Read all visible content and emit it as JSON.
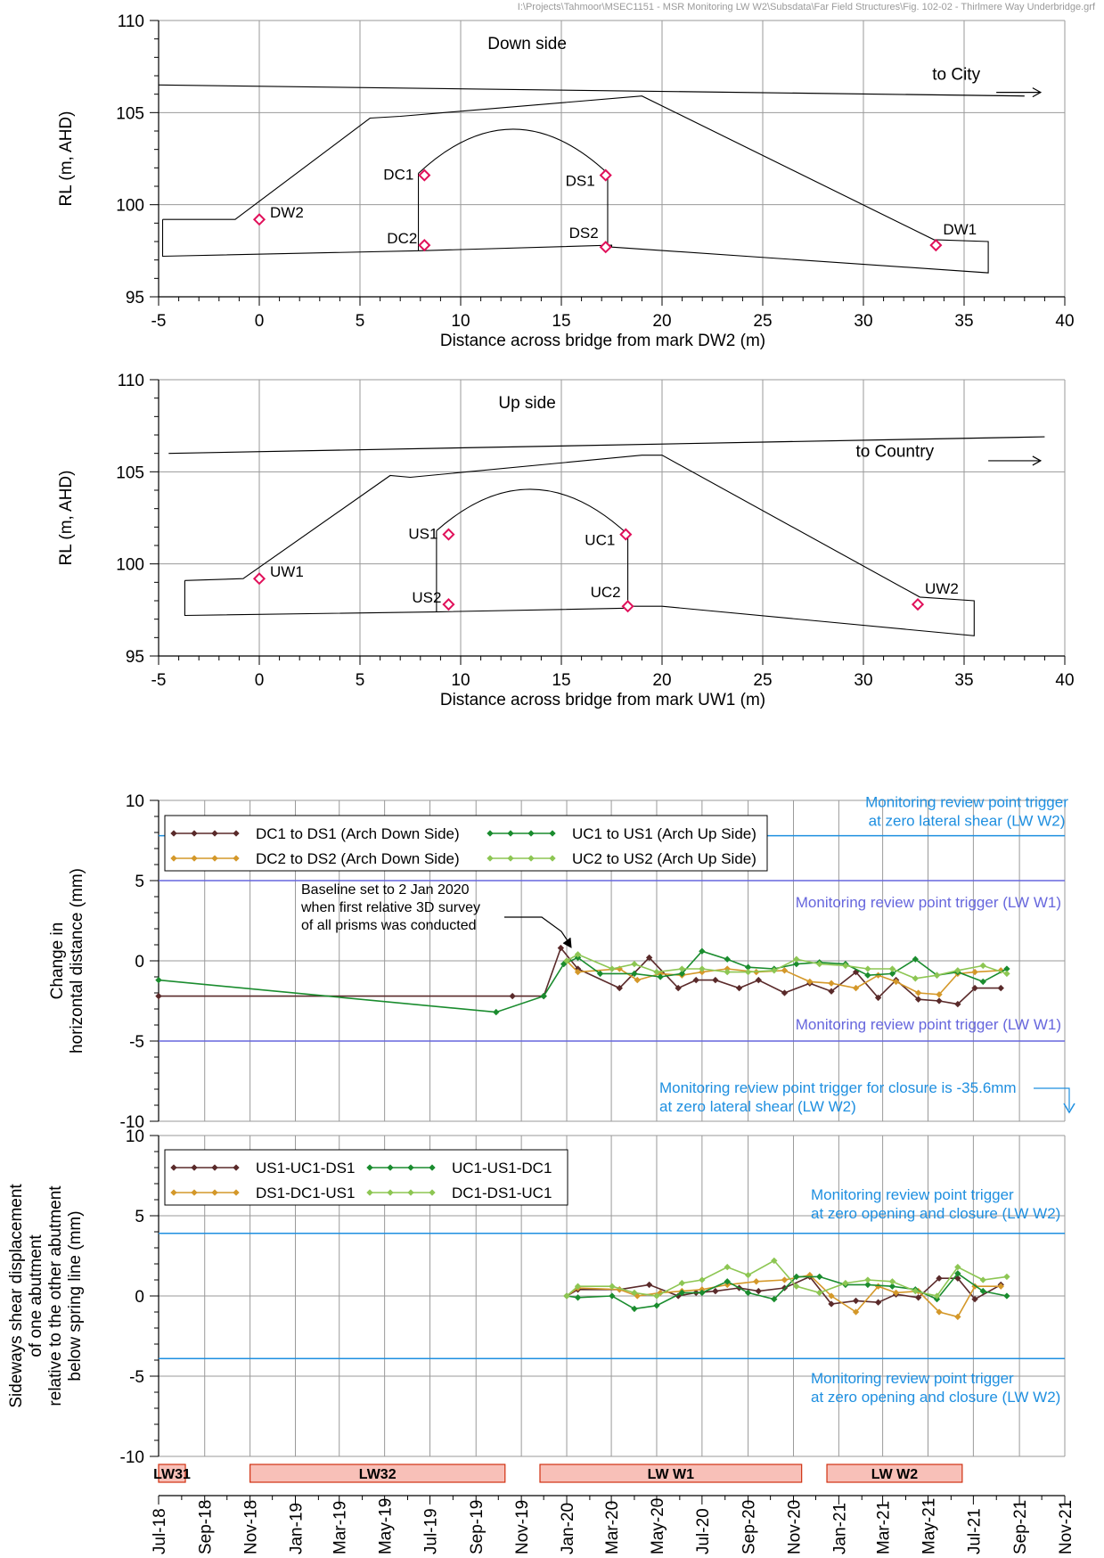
{
  "file_path": "I:\\Projects\\Tahmoor\\MSEC1151 - MSR Monitoring LW W2\\Subsdata\\Far Field Structures\\Fig. 102-02 - Thirlmere Way Underbridge.grf",
  "colors": {
    "ds_pair_1": "#5a2a2a",
    "ds_pair_2": "#d4982a",
    "us_pair_1": "#1a8c2e",
    "us_pair_2": "#8dc653",
    "trigger_blue": "#1e8fe0",
    "trigger_purple": "#6666dd",
    "marker_pink": "#e0105a",
    "longwall_fill": "#f8c0b8",
    "longwall_edge": "#d03010"
  },
  "chart_data": [
    {
      "type": "scatter",
      "title": "Down side",
      "xlabel": "Distance across bridge from mark DW2 (m)",
      "ylabel": "RL (m, AHD)",
      "xlim": [
        -5,
        40
      ],
      "ylim": [
        95,
        110
      ],
      "xticks": [
        "-5",
        "0",
        "5",
        "10",
        "15",
        "20",
        "25",
        "30",
        "35",
        "40"
      ],
      "yticks": [
        "95",
        "100",
        "105",
        "110"
      ],
      "annotation": "to City",
      "road_line": [
        [
          -5,
          106.5
        ],
        [
          38,
          105.9
        ]
      ],
      "embankment_outline": [
        [
          -4.8,
          99.2
        ],
        [
          -1.2,
          99.2
        ],
        [
          5.5,
          104.7
        ],
        [
          7,
          104.8
        ],
        [
          19,
          105.9
        ],
        [
          33.5,
          98.1
        ],
        [
          36.2,
          98.0
        ],
        [
          36.2,
          96.3
        ],
        [
          17.5,
          97.7
        ],
        [
          17.5,
          97.8
        ],
        [
          8,
          97.5
        ],
        [
          -4.8,
          97.2
        ],
        [
          -4.8,
          99.2
        ]
      ],
      "arch": {
        "left": [
          7.9,
          101.7
        ],
        "right": [
          17.3,
          101.7
        ],
        "left_base": [
          7.9,
          97.5
        ],
        "right_base": [
          17.3,
          97.7
        ],
        "crown": 104.1
      },
      "prisms": [
        {
          "label": "DW2",
          "x": 0,
          "y": 99.2
        },
        {
          "label": "DC1",
          "x": 8.2,
          "y": 101.6
        },
        {
          "label": "DS1",
          "x": 17.2,
          "y": 101.6
        },
        {
          "label": "DC2",
          "x": 8.2,
          "y": 97.8
        },
        {
          "label": "DS2",
          "x": 17.2,
          "y": 97.7
        },
        {
          "label": "DW1",
          "x": 33.6,
          "y": 97.8
        }
      ]
    },
    {
      "type": "scatter",
      "title": "Up side",
      "xlabel": "Distance across bridge from mark UW1 (m)",
      "ylabel": "RL (m, AHD)",
      "xlim": [
        -5,
        40
      ],
      "ylim": [
        95,
        110
      ],
      "xticks": [
        "-5",
        "0",
        "5",
        "10",
        "15",
        "20",
        "25",
        "30",
        "35",
        "40"
      ],
      "yticks": [
        "95",
        "100",
        "105",
        "110"
      ],
      "annotation": "to Country",
      "road_line": [
        [
          -4.5,
          106.0
        ],
        [
          39,
          106.9
        ]
      ],
      "embankment_outline": [
        [
          -3.7,
          99.1
        ],
        [
          -0.8,
          99.2
        ],
        [
          6.5,
          104.8
        ],
        [
          7.5,
          104.7
        ],
        [
          19,
          105.9
        ],
        [
          20,
          105.9
        ],
        [
          32.8,
          98.2
        ],
        [
          35.5,
          98.0
        ],
        [
          35.5,
          96.1
        ],
        [
          20,
          97.7
        ],
        [
          18.3,
          97.7
        ],
        [
          18.3,
          97.6
        ],
        [
          9,
          97.4
        ],
        [
          -3.7,
          97.2
        ],
        [
          -3.7,
          99.1
        ]
      ],
      "arch": {
        "left": [
          8.8,
          101.8
        ],
        "right": [
          18.3,
          101.6
        ],
        "left_base": [
          8.8,
          97.4
        ],
        "right_base": [
          18.3,
          97.6
        ],
        "crown": 104.1
      },
      "prisms": [
        {
          "label": "UW1",
          "x": 0,
          "y": 99.2
        },
        {
          "label": "US1",
          "x": 9.4,
          "y": 101.6
        },
        {
          "label": "UC1",
          "x": 18.2,
          "y": 101.6
        },
        {
          "label": "US2",
          "x": 9.4,
          "y": 97.8
        },
        {
          "label": "UC2",
          "x": 18.3,
          "y": 97.7
        },
        {
          "label": "UW2",
          "x": 32.7,
          "y": 97.8
        }
      ]
    },
    {
      "type": "line",
      "ylabel": "Change in horizontal distance (mm)",
      "ylim": [
        -10,
        10
      ],
      "yticks": [
        "-10",
        "-5",
        "0",
        "5",
        "10"
      ],
      "x_start": "2018-07-01",
      "x_end": "2021-11-01",
      "series": [
        {
          "name": "DC1 to DS1 (Arch Down Side)",
          "x": [
            "2018-07-01",
            "2019-10-20",
            "2019-12-01",
            "2019-12-24",
            "2020-01-16",
            "2020-03-12",
            "2020-04-21",
            "2020-05-30",
            "2020-06-23",
            "2020-07-19",
            "2020-08-20",
            "2020-09-15",
            "2020-10-20",
            "2020-11-23",
            "2020-12-22",
            "2021-01-24",
            "2021-02-23",
            "2021-03-19",
            "2021-04-18",
            "2021-05-16",
            "2021-06-10",
            "2021-07-03",
            "2021-08-07"
          ],
          "y": [
            -2.2,
            -2.2,
            -2.2,
            0.8,
            -0.5,
            -1.7,
            0.2,
            -1.7,
            -1.2,
            -1.2,
            -1.7,
            -1.2,
            -2.0,
            -1.4,
            -1.9,
            -0.7,
            -2.3,
            -1.2,
            -2.4,
            -2.5,
            -2.7,
            -1.7,
            -1.7
          ]
        },
        {
          "name": "DC2 to DS2 (Arch Down Side)",
          "x": [
            "2020-01-01",
            "2020-01-16",
            "2020-03-12",
            "2020-04-05",
            "2020-05-06",
            "2020-06-04",
            "2020-07-01",
            "2020-08-04",
            "2020-09-12",
            "2020-10-20",
            "2020-11-23",
            "2020-12-22",
            "2021-01-24",
            "2021-02-23",
            "2021-03-19",
            "2021-04-18",
            "2021-05-16",
            "2021-06-10",
            "2021-07-03",
            "2021-08-07"
          ],
          "y": [
            0,
            -0.7,
            -0.5,
            -1.2,
            -0.8,
            -0.9,
            -0.7,
            -0.5,
            -0.7,
            -0.6,
            -1.3,
            -1.4,
            -1.7,
            -0.9,
            -1.3,
            -2.0,
            -2.1,
            -0.8,
            -0.7,
            -0.6
          ]
        },
        {
          "name": "UC1 to US1 (Arch Up Side)",
          "x": [
            "2018-07-01",
            "2019-09-28",
            "2019-12-01",
            "2019-12-28",
            "2020-01-16",
            "2020-02-15",
            "2020-04-01",
            "2020-05-06",
            "2020-06-04",
            "2020-07-01",
            "2020-08-04",
            "2020-09-01",
            "2020-10-06",
            "2020-11-05",
            "2020-12-06",
            "2021-01-10",
            "2021-02-09",
            "2021-03-14",
            "2021-04-14",
            "2021-05-13",
            "2021-06-10",
            "2021-07-14",
            "2021-08-15"
          ],
          "y": [
            -1.2,
            -3.2,
            -2.2,
            -0.2,
            0.2,
            -0.8,
            -0.8,
            -1.0,
            -0.8,
            0.6,
            0.1,
            -0.4,
            -0.5,
            -0.2,
            -0.1,
            -0.2,
            -0.9,
            -0.8,
            0.1,
            -0.9,
            -0.7,
            -1.3,
            -0.5
          ]
        },
        {
          "name": "UC2 to US2 (Arch Up Side)",
          "x": [
            "2020-01-01",
            "2020-01-16",
            "2020-03-02",
            "2020-04-01",
            "2020-05-01",
            "2020-06-04",
            "2020-07-01",
            "2020-08-04",
            "2020-09-01",
            "2020-10-06",
            "2020-11-05",
            "2020-12-06",
            "2021-01-10",
            "2021-02-09",
            "2021-03-14",
            "2021-04-14",
            "2021-05-13",
            "2021-06-10",
            "2021-07-14",
            "2021-08-15"
          ],
          "y": [
            0,
            0.4,
            -0.5,
            -0.2,
            -0.7,
            -0.5,
            -0.5,
            -0.7,
            -0.7,
            -0.6,
            0.1,
            -0.2,
            -0.3,
            -0.5,
            -0.5,
            -1.1,
            -0.9,
            -0.6,
            -0.3,
            -0.8
          ]
        }
      ],
      "trigger_lines": [
        {
          "value": 7.8,
          "color": "blue",
          "label_lines": [
            "Monitoring review point trigger",
            "at zero lateral shear (LW W2)"
          ]
        },
        {
          "value": 5,
          "color": "purple",
          "label_lines": [
            "Monitoring review point trigger (LW W1)"
          ]
        },
        {
          "value": -5,
          "color": "purple",
          "label_lines": [
            "Monitoring review point trigger (LW W1)"
          ]
        }
      ],
      "closure_note_lines": [
        "Monitoring review point trigger for closure is -35.6mm",
        "at zero lateral shear (LW W2)"
      ],
      "baseline_note_lines": [
        "Baseline set to 2 Jan 2020",
        "when first relative 3D survey",
        "of all prisms was conducted"
      ]
    },
    {
      "type": "line",
      "ylabel_lines": [
        "Sideways shear displacement",
        "of one abutment",
        "relative to the other abutment",
        "below spring line (mm)"
      ],
      "ylim": [
        -10,
        10
      ],
      "yticks": [
        "-10",
        "-5",
        "0",
        "5",
        "10"
      ],
      "x_start": "2018-07-01",
      "x_end": "2021-11-01",
      "series": [
        {
          "name": "US1-UC1-DS1",
          "x": [
            "2020-01-01",
            "2020-01-16",
            "2020-03-12",
            "2020-04-21",
            "2020-05-30",
            "2020-06-23",
            "2020-07-19",
            "2020-08-20",
            "2020-09-15",
            "2020-10-20",
            "2020-11-23",
            "2020-12-22",
            "2021-01-24",
            "2021-02-23",
            "2021-03-19",
            "2021-04-18",
            "2021-05-16",
            "2021-06-10",
            "2021-07-03",
            "2021-08-07"
          ],
          "y": [
            0,
            0.4,
            0.4,
            0.7,
            0.0,
            0.2,
            0.3,
            0.5,
            0.3,
            0.5,
            1.2,
            -0.5,
            -0.3,
            -0.4,
            0.1,
            -0.1,
            1.1,
            1.1,
            -0.2,
            0.7
          ]
        },
        {
          "name": "DS1-DC1-US1",
          "x": [
            "2020-01-01",
            "2020-01-16",
            "2020-03-12",
            "2020-04-05",
            "2020-05-06",
            "2020-06-04",
            "2020-07-01",
            "2020-08-04",
            "2020-09-12",
            "2020-10-20",
            "2020-11-23",
            "2020-12-22",
            "2021-01-24",
            "2021-02-23",
            "2021-03-19",
            "2021-04-18",
            "2021-05-16",
            "2021-06-10",
            "2021-07-03",
            "2021-08-07"
          ],
          "y": [
            0,
            0.5,
            0.4,
            0.0,
            0.2,
            0.3,
            0.4,
            0.7,
            0.9,
            1.0,
            1.3,
            0.0,
            -1.0,
            0.6,
            0.2,
            0.3,
            -1.0,
            -1.3,
            0.6,
            0.6
          ]
        },
        {
          "name": "UC1-US1-DC1",
          "x": [
            "2020-01-01",
            "2020-01-16",
            "2020-03-02",
            "2020-04-01",
            "2020-05-01",
            "2020-06-04",
            "2020-07-01",
            "2020-08-04",
            "2020-09-01",
            "2020-10-06",
            "2020-11-05",
            "2020-12-06",
            "2021-01-10",
            "2021-02-09",
            "2021-03-14",
            "2021-04-14",
            "2021-05-13",
            "2021-06-10",
            "2021-07-14",
            "2021-08-15"
          ],
          "y": [
            0,
            -0.1,
            0.0,
            -0.8,
            -0.6,
            0.2,
            0.2,
            0.9,
            0.2,
            -0.2,
            1.2,
            1.2,
            0.7,
            0.7,
            0.6,
            0.4,
            -0.2,
            1.4,
            0.3,
            0.0
          ]
        },
        {
          "name": "DC1-DS1-UC1",
          "x": [
            "2020-01-01",
            "2020-01-16",
            "2020-03-02",
            "2020-04-01",
            "2020-05-01",
            "2020-06-04",
            "2020-07-01",
            "2020-08-04",
            "2020-09-01",
            "2020-10-06",
            "2020-11-05",
            "2020-12-06",
            "2021-01-10",
            "2021-02-09",
            "2021-03-14",
            "2021-04-14",
            "2021-05-13",
            "2021-06-10",
            "2021-07-14",
            "2021-08-15"
          ],
          "y": [
            0,
            0.6,
            0.6,
            0.2,
            0.0,
            0.8,
            1.0,
            1.8,
            1.3,
            2.2,
            0.6,
            0.2,
            0.8,
            1.0,
            0.9,
            0.3,
            0.0,
            1.8,
            1.0,
            1.2
          ]
        }
      ],
      "trigger_lines": [
        {
          "value": 3.9,
          "color": "blue",
          "label_lines": [
            "Monitoring review point trigger",
            "at zero opening and closure (LW W2)"
          ]
        },
        {
          "value": -3.9,
          "color": "blue",
          "label_lines": [
            "Monitoring review point trigger",
            "at zero opening and closure (LW W2)"
          ]
        }
      ]
    }
  ],
  "longwalls": [
    {
      "label": "LW31",
      "start": "2018-07-01",
      "end": "2018-08-06"
    },
    {
      "label": "LW32",
      "start": "2018-11-01",
      "end": "2019-10-10"
    },
    {
      "label": "LW W1",
      "start": "2019-11-26",
      "end": "2020-11-12"
    },
    {
      "label": "LW W2",
      "start": "2020-12-16",
      "end": "2021-06-16"
    }
  ],
  "time_axis_labels": [
    "Jul-18",
    "Sep-18",
    "Nov-18",
    "Jan-19",
    "Mar-19",
    "May-19",
    "Jul-19",
    "Sep-19",
    "Nov-19",
    "Jan-20",
    "Mar-20",
    "May-20",
    "Jul-20",
    "Sep-20",
    "Nov-20",
    "Jan-21",
    "Mar-21",
    "May-21",
    "Jul-21",
    "Sep-21",
    "Nov-21"
  ]
}
